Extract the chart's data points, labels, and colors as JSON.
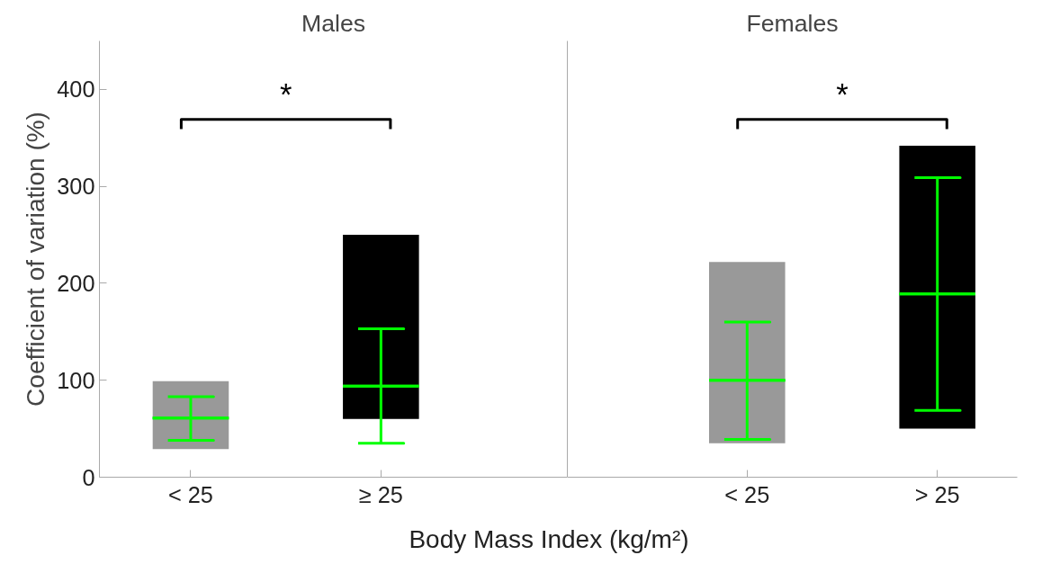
{
  "chart_data": [
    {
      "type": "bar",
      "title": "Males",
      "ylabel": "Coefficient of variation (%)",
      "xlabel": "Body Mass Index (kg/m²)",
      "categories": [
        "< 25",
        "≥ 25"
      ],
      "ylim": [
        0,
        450
      ],
      "yticks": [
        0,
        100,
        200,
        300,
        400
      ],
      "series": [
        {
          "base": [
            29,
            60
          ],
          "values": [
            70,
            190
          ],
          "colors": [
            "#999999",
            "#000000"
          ]
        },
        {
          "type": "box",
          "color": "#00ff00",
          "boxes": [
            {
              "low": 38,
              "q1": 61,
              "median": 61,
              "q3": 61,
              "high": 83
            },
            {
              "low": 35,
              "q1": 94,
              "median": 94,
              "q3": 94,
              "high": 153
            }
          ]
        }
      ],
      "annotations": [
        "*"
      ]
    },
    {
      "type": "bar",
      "title": "Females",
      "categories": [
        "< 25",
        "> 25"
      ],
      "ylim": [
        0,
        450
      ],
      "tick_labels": "x",
      "series": [
        {
          "base": [
            35,
            50
          ],
          "values": [
            187,
            292
          ],
          "colors": [
            "#999999",
            "#000000"
          ]
        },
        {
          "type": "box",
          "color": "#00ff00",
          "boxes": [
            {
              "low": 39,
              "q1": 100,
              "median": 100,
              "q3": 100,
              "high": 160
            },
            {
              "low": 69,
              "q1": 189,
              "median": 189,
              "q3": 189,
              "high": 309
            }
          ]
        }
      ],
      "annotations": [
        "*"
      ]
    }
  ]
}
